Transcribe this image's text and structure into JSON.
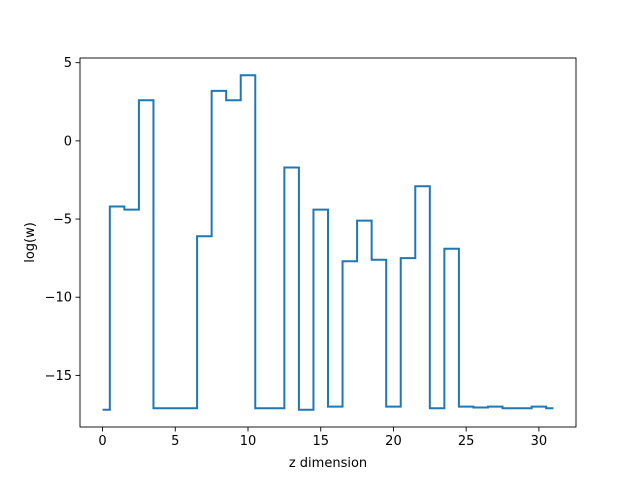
{
  "chart_data": {
    "type": "line",
    "drawstyle": "steps-mid",
    "title": "",
    "xlabel": "z dimension",
    "ylabel": "log(w)",
    "xlim": [
      -1.55,
      32.55
    ],
    "ylim": [
      -18.3,
      5.3
    ],
    "xticks": [
      0,
      5,
      10,
      15,
      20,
      25,
      30
    ],
    "yticks": [
      5,
      0,
      -5,
      -10,
      -15
    ],
    "xtick_labels": [
      "0",
      "5",
      "10",
      "15",
      "20",
      "25",
      "30"
    ],
    "ytick_labels": [
      "5",
      "0",
      "−5",
      "−10",
      "−15"
    ],
    "grid": false,
    "series": [
      {
        "color": "#1f77b4",
        "x": [
          0,
          1,
          2,
          3,
          4,
          5,
          6,
          7,
          8,
          9,
          10,
          11,
          12,
          13,
          14,
          15,
          16,
          17,
          18,
          19,
          20,
          21,
          22,
          23,
          24,
          25,
          26,
          27,
          28,
          29,
          30,
          31
        ],
        "y": [
          -17.2,
          -4.2,
          -4.4,
          2.6,
          -17.1,
          -17.1,
          -17.1,
          -6.1,
          3.2,
          2.6,
          4.2,
          -17.1,
          -17.1,
          -1.7,
          -17.2,
          -4.4,
          -17.0,
          -7.7,
          -5.1,
          -7.6,
          -17.0,
          -7.5,
          -2.9,
          -17.1,
          -6.9,
          -17.0,
          -17.05,
          -17.0,
          -17.1,
          -17.1,
          -17.0,
          -17.1
        ]
      }
    ]
  }
}
